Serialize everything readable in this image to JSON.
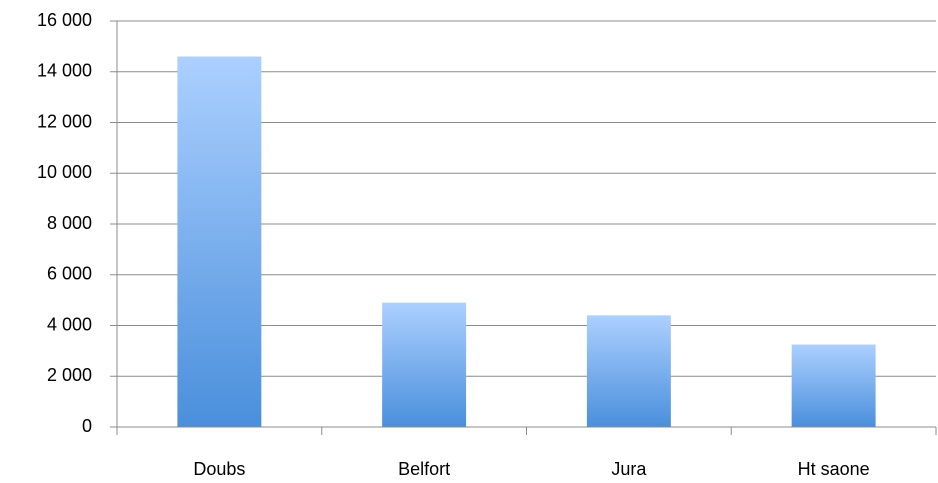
{
  "chart_data": {
    "type": "bar",
    "categories": [
      "Doubs",
      "Belfort",
      "Jura",
      "Ht saone"
    ],
    "values": [
      14600,
      4900,
      4400,
      3250
    ],
    "color": "#4a8fdc",
    "ylim": [
      0,
      16000
    ],
    "yticks": [
      0,
      {
        "value": 2000,
        "label": "2 000"
      },
      {
        "value": 4000,
        "label": "4 000"
      },
      {
        "value": 6000,
        "label": "6 000"
      },
      {
        "value": 8000,
        "label": "8 000"
      },
      {
        "value": 10000,
        "label": "10 000"
      },
      {
        "value": 12000,
        "label": "12 000"
      },
      {
        "value": 14000,
        "label": "14 000"
      },
      {
        "value": 16000,
        "label": "16 000"
      }
    ],
    "grid": true
  }
}
